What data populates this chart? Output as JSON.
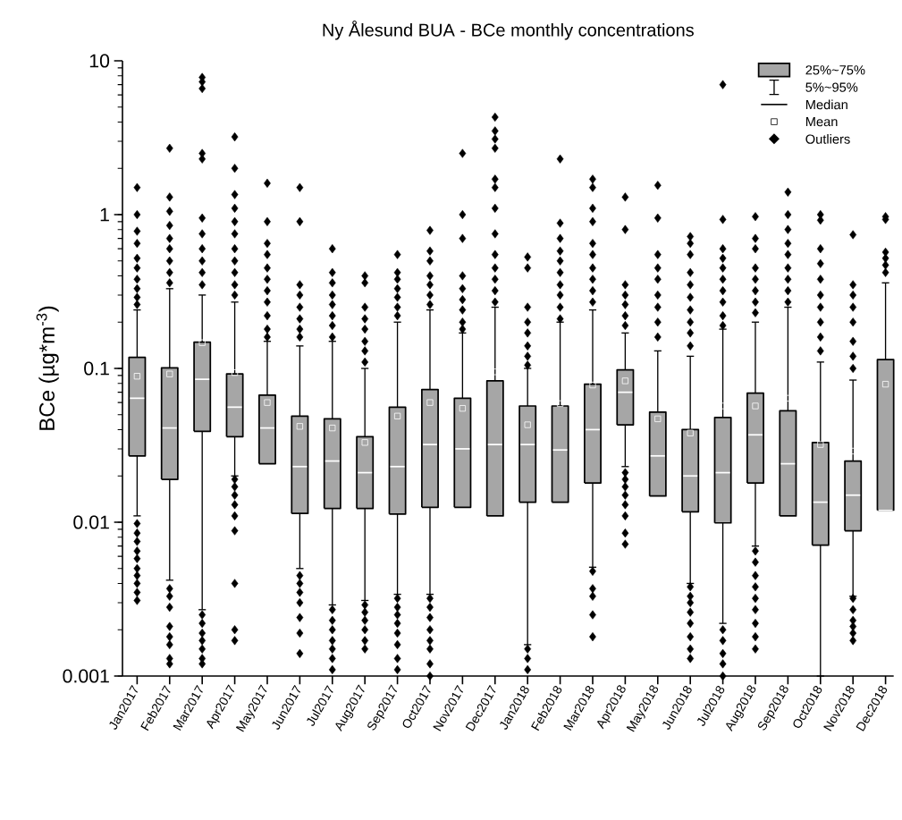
{
  "chart_data": {
    "type": "box",
    "title": "Ny Ålesund BUA - BCe monthly concentrations",
    "ylabel": "BCe (µg*m$^{-3}$)",
    "categories": [
      "Jan2017",
      "Feb2017",
      "Mar2017",
      "Apr2017",
      "May2017",
      "Jun2017",
      "Jul2017",
      "Aug2017",
      "Sep2017",
      "Oct2017",
      "Nov2017",
      "Dec2017",
      "Jan2018",
      "Feb2018",
      "Mar2018",
      "Apr2018",
      "May2018",
      "Jun2018",
      "Jul2018",
      "Aug2018",
      "Sep2018",
      "Oct2018",
      "Nov2018",
      "Dec2018"
    ],
    "series": [
      {
        "color": "#a6a6a6",
        "boxes": [
          {
            "low": 0.011,
            "q1": 0.027,
            "median": 0.064,
            "q3": 0.118,
            "high": 0.24,
            "mean": 0.089,
            "outliers": [
              1.5,
              1.0,
              0.78,
              0.65,
              0.52,
              0.45,
              0.38,
              0.33,
              0.29,
              0.26,
              0.0098,
              0.0085,
              0.0075,
              0.0065,
              0.0058,
              0.005,
              0.0045,
              0.004,
              0.0035,
              0.0031
            ]
          },
          {
            "low": 0.0042,
            "q1": 0.019,
            "median": 0.041,
            "q3": 0.101,
            "high": 0.33,
            "mean": 0.092,
            "outliers": [
              2.7,
              1.3,
              1.05,
              0.85,
              0.7,
              0.6,
              0.5,
              0.42,
              0.36,
              0.0037,
              0.0033,
              0.0028,
              0.0021,
              0.0018,
              0.0016,
              0.0013,
              0.0012
            ]
          },
          {
            "low": 0.0027,
            "q1": 0.039,
            "median": 0.085,
            "q3": 0.148,
            "high": 0.3,
            "mean": 0.147,
            "outliers": [
              7.8,
              7.3,
              6.6,
              2.5,
              2.3,
              0.95,
              0.75,
              0.6,
              0.5,
              0.42,
              0.35,
              0.0025,
              0.0022,
              0.0019,
              0.0017,
              0.0015,
              0.0013,
              0.0012
            ]
          },
          {
            "low": 0.02,
            "q1": 0.036,
            "median": 0.056,
            "q3": 0.092,
            "high": 0.27,
            "mean": 0.094,
            "outliers": [
              3.2,
              2.0,
              1.35,
              1.1,
              0.9,
              0.75,
              0.6,
              0.5,
              0.42,
              0.35,
              0.3,
              0.019,
              0.017,
              0.015,
              0.013,
              0.011,
              0.0088,
              0.004,
              0.002,
              0.0017
            ]
          },
          {
            "low": 0.024,
            "q1": 0.024,
            "median": 0.041,
            "q3": 0.067,
            "high": 0.15,
            "mean": 0.06,
            "outliers": [
              1.6,
              0.9,
              0.65,
              0.55,
              0.45,
              0.38,
              0.32,
              0.27,
              0.22,
              0.18,
              0.16
            ]
          },
          {
            "low": 0.005,
            "q1": 0.0114,
            "median": 0.023,
            "q3": 0.049,
            "high": 0.14,
            "mean": 0.042,
            "outliers": [
              1.5,
              0.9,
              0.35,
              0.3,
              0.25,
              0.21,
              0.18,
              0.16,
              0.0045,
              0.004,
              0.0035,
              0.003,
              0.0024,
              0.0019,
              0.0014
            ]
          },
          {
            "low": 0.0029,
            "q1": 0.0123,
            "median": 0.025,
            "q3": 0.047,
            "high": 0.15,
            "mean": 0.041,
            "outliers": [
              0.6,
              0.42,
              0.36,
              0.3,
              0.26,
              0.22,
              0.19,
              0.16,
              0.0027,
              0.0023,
              0.002,
              0.0017,
              0.0015,
              0.0013,
              0.0011
            ]
          },
          {
            "low": 0.0031,
            "q1": 0.0123,
            "median": 0.021,
            "q3": 0.036,
            "high": 0.1,
            "mean": 0.033,
            "outliers": [
              0.4,
              0.36,
              0.25,
              0.21,
              0.18,
              0.15,
              0.13,
              0.11,
              0.0029,
              0.0026,
              0.0023,
              0.002,
              0.0017,
              0.0015
            ]
          },
          {
            "low": 0.0034,
            "q1": 0.0113,
            "median": 0.023,
            "q3": 0.056,
            "high": 0.2,
            "mean": 0.049,
            "outliers": [
              0.55,
              0.42,
              0.38,
              0.33,
              0.29,
              0.25,
              0.22,
              0.0032,
              0.0028,
              0.0025,
              0.0022,
              0.0019,
              0.0016,
              0.0013,
              0.0011
            ]
          },
          {
            "low": 0.0034,
            "q1": 0.0125,
            "median": 0.032,
            "q3": 0.073,
            "high": 0.24,
            "mean": 0.06,
            "outliers": [
              0.79,
              0.58,
              0.5,
              0.4,
              0.35,
              0.3,
              0.26,
              0.0032,
              0.0028,
              0.0024,
              0.002,
              0.0017,
              0.0015,
              0.0012,
              0.001
            ]
          },
          {
            "low": 0.0125,
            "q1": 0.0125,
            "median": 0.03,
            "q3": 0.064,
            "high": 0.17,
            "mean": 0.055,
            "outliers": [
              2.5,
              1.0,
              0.7,
              0.4,
              0.33,
              0.28,
              0.24,
              0.2,
              0.18
            ]
          },
          {
            "low": 0.011,
            "q1": 0.011,
            "median": 0.032,
            "q3": 0.083,
            "high": 0.25,
            "mean": 0.095,
            "outliers": [
              4.3,
              3.5,
              3.1,
              2.7,
              1.7,
              1.5,
              1.1,
              0.75,
              0.55,
              0.45,
              0.38,
              0.32,
              0.27
            ]
          },
          {
            "low": 0.0016,
            "q1": 0.0135,
            "median": 0.032,
            "q3": 0.057,
            "high": 0.1,
            "mean": 0.043,
            "outliers": [
              0.53,
              0.45,
              0.25,
              0.2,
              0.17,
              0.14,
              0.12,
              0.105,
              0.0015,
              0.0013,
              0.0011
            ]
          },
          {
            "low": 0.0135,
            "q1": 0.0135,
            "median": 0.0295,
            "q3": 0.057,
            "high": 0.2,
            "mean": 0.059,
            "outliers": [
              2.3,
              0.88,
              0.7,
              0.58,
              0.5,
              0.42,
              0.35,
              0.3,
              0.25,
              0.21
            ]
          },
          {
            "low": 0.0051,
            "q1": 0.018,
            "median": 0.04,
            "q3": 0.079,
            "high": 0.24,
            "mean": 0.078,
            "outliers": [
              1.7,
              1.5,
              1.1,
              0.9,
              0.65,
              0.55,
              0.45,
              0.38,
              0.32,
              0.27,
              0.0048,
              0.0037,
              0.0033,
              0.0025,
              0.0018
            ]
          },
          {
            "low": 0.023,
            "q1": 0.043,
            "median": 0.07,
            "q3": 0.098,
            "high": 0.17,
            "mean": 0.083,
            "outliers": [
              1.3,
              0.8,
              0.35,
              0.3,
              0.26,
              0.22,
              0.19,
              0.021,
              0.019,
              0.017,
              0.015,
              0.013,
              0.011,
              0.0085,
              0.0072
            ]
          },
          {
            "low": 0.0148,
            "q1": 0.0148,
            "median": 0.027,
            "q3": 0.052,
            "high": 0.13,
            "mean": 0.047,
            "outliers": [
              1.55,
              0.95,
              0.55,
              0.45,
              0.38,
              0.3,
              0.25,
              0.2,
              0.16
            ]
          },
          {
            "low": 0.004,
            "q1": 0.0117,
            "median": 0.02,
            "q3": 0.04,
            "high": 0.12,
            "mean": 0.038,
            "outliers": [
              0.72,
              0.65,
              0.55,
              0.42,
              0.35,
              0.29,
              0.24,
              0.2,
              0.17,
              0.14,
              0.0038,
              0.0033,
              0.003,
              0.0026,
              0.0022,
              0.0018,
              0.0015,
              0.0013
            ]
          },
          {
            "low": 0.0022,
            "q1": 0.0099,
            "median": 0.021,
            "q3": 0.048,
            "high": 0.18,
            "mean": 0.057,
            "outliers": [
              7.0,
              0.93,
              0.6,
              0.52,
              0.45,
              0.38,
              0.32,
              0.27,
              0.22,
              0.19,
              0.002,
              0.0017,
              0.0014,
              0.0012,
              0.001
            ]
          },
          {
            "low": 0.007,
            "q1": 0.018,
            "median": 0.037,
            "q3": 0.069,
            "high": 0.2,
            "mean": 0.057,
            "outliers": [
              0.97,
              0.7,
              0.6,
              0.45,
              0.38,
              0.32,
              0.27,
              0.23,
              0.0065,
              0.0055,
              0.0045,
              0.0038,
              0.0032,
              0.0027,
              0.0022,
              0.0018,
              0.0015
            ]
          },
          {
            "low": 0.011,
            "q1": 0.011,
            "median": 0.024,
            "q3": 0.053,
            "high": 0.25,
            "mean": 0.064,
            "outliers": [
              1.4,
              1.0,
              0.8,
              0.65,
              0.55,
              0.45,
              0.38,
              0.32,
              0.27
            ]
          },
          {
            "low": 0.001,
            "q1": 0.0071,
            "median": 0.0135,
            "q3": 0.033,
            "high": 0.11,
            "mean": 0.032,
            "outliers": [
              1.0,
              0.92,
              0.6,
              0.48,
              0.38,
              0.3,
              0.25,
              0.2,
              0.16,
              0.13
            ]
          },
          {
            "low": 0.0033,
            "q1": 0.0088,
            "median": 0.015,
            "q3": 0.025,
            "high": 0.084,
            "mean": 0.029,
            "outliers": [
              0.74,
              0.35,
              0.3,
              0.25,
              0.2,
              0.15,
              0.12,
              0.1,
              0.0032,
              0.0027,
              0.0023,
              0.0021,
              0.0019,
              0.0017
            ]
          },
          {
            "low": 0.012,
            "q1": 0.012,
            "median": 0.012,
            "q3": 0.114,
            "high": 0.36,
            "mean": 0.079,
            "outliers": [
              0.97,
              0.93,
              0.57,
              0.52,
              0.47,
              0.42
            ]
          }
        ]
      }
    ],
    "ylim": [
      0.001,
      10
    ],
    "yticks": [
      0.001,
      0.01,
      0.1,
      1,
      10
    ],
    "log": true,
    "annotations": [
      "25%~75%",
      "5%~95%",
      "Median",
      "Mean",
      "Outliers"
    ]
  }
}
